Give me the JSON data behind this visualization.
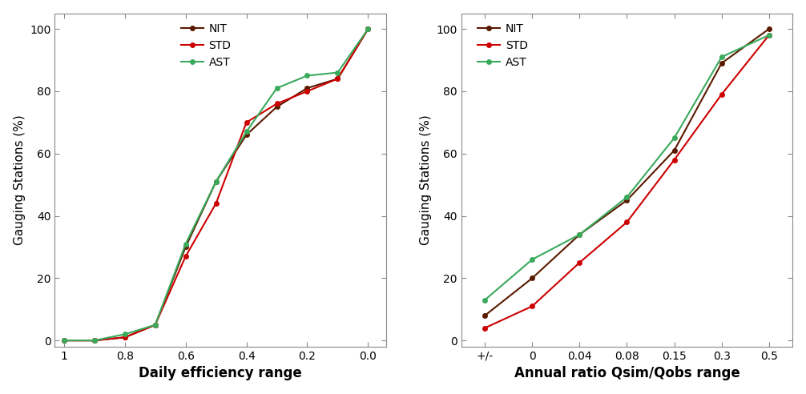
{
  "left": {
    "ylabel": "Gauging Stations (%)",
    "xlabel": "Daily efficiency range",
    "xtick_labels": [
      "1",
      "0.8",
      "0.6",
      "0.4",
      "0.2",
      "0.0"
    ],
    "xtick_vals": [
      0,
      1,
      2,
      3,
      4,
      5
    ],
    "xlim": [
      -0.15,
      5.3
    ],
    "ylim": [
      -2,
      105
    ],
    "yticks": [
      0,
      20,
      40,
      60,
      80,
      100
    ],
    "NIT": {
      "x": [
        0,
        0.5,
        1.0,
        1.5,
        2.0,
        2.5,
        3.0,
        3.5,
        4.0,
        4.5,
        5.0
      ],
      "y": [
        0,
        0,
        1,
        5,
        30,
        51,
        66,
        75,
        81,
        84,
        100
      ],
      "color": "#5a1a00"
    },
    "STD": {
      "x": [
        0,
        0.5,
        1.0,
        1.5,
        2.0,
        2.5,
        3.0,
        3.5,
        4.0,
        4.5,
        5.0
      ],
      "y": [
        0,
        0,
        1,
        5,
        27,
        44,
        70,
        76,
        80,
        84,
        100
      ],
      "color": "#cc0000"
    },
    "AST": {
      "x": [
        0,
        0.5,
        1.0,
        1.5,
        2.0,
        2.5,
        3.0,
        3.5,
        4.0,
        4.5,
        5.0
      ],
      "y": [
        0,
        0,
        2,
        5,
        31,
        51,
        67,
        81,
        85,
        86,
        100
      ],
      "color": "#3aaa5c"
    }
  },
  "right": {
    "xlabel": "Annual ratio Qsim/Qobs range",
    "ylabel": "Gauging Stations (%)",
    "xtick_labels": [
      "+/-",
      "0",
      "0.04",
      "0.08",
      "0.15",
      "0.3",
      "0.5"
    ],
    "xtick_vals": [
      0,
      1,
      2,
      3,
      4,
      5,
      6
    ],
    "xlim": [
      -0.5,
      6.5
    ],
    "ylim": [
      -2,
      105
    ],
    "yticks": [
      0,
      20,
      40,
      60,
      80,
      100
    ],
    "NIT": {
      "x": [
        0,
        1,
        2,
        3,
        4,
        5,
        6
      ],
      "y": [
        8,
        20,
        34,
        45,
        61,
        89,
        100
      ],
      "color": "#5a1a00"
    },
    "STD": {
      "x": [
        0,
        1,
        2,
        3,
        4,
        5,
        6
      ],
      "y": [
        4,
        11,
        25,
        38,
        58,
        79,
        98
      ],
      "color": "#cc0000"
    },
    "AST": {
      "x": [
        0,
        1,
        2,
        3,
        4,
        5,
        6
      ],
      "y": [
        13,
        26,
        34,
        46,
        65,
        91,
        98
      ],
      "color": "#3aaa5c"
    }
  },
  "bg_color": "#ffffff",
  "plot_bg": "#ffffff",
  "series_order": [
    "NIT",
    "STD",
    "AST"
  ],
  "series_labels": [
    "NIT",
    "STD",
    "AST"
  ]
}
